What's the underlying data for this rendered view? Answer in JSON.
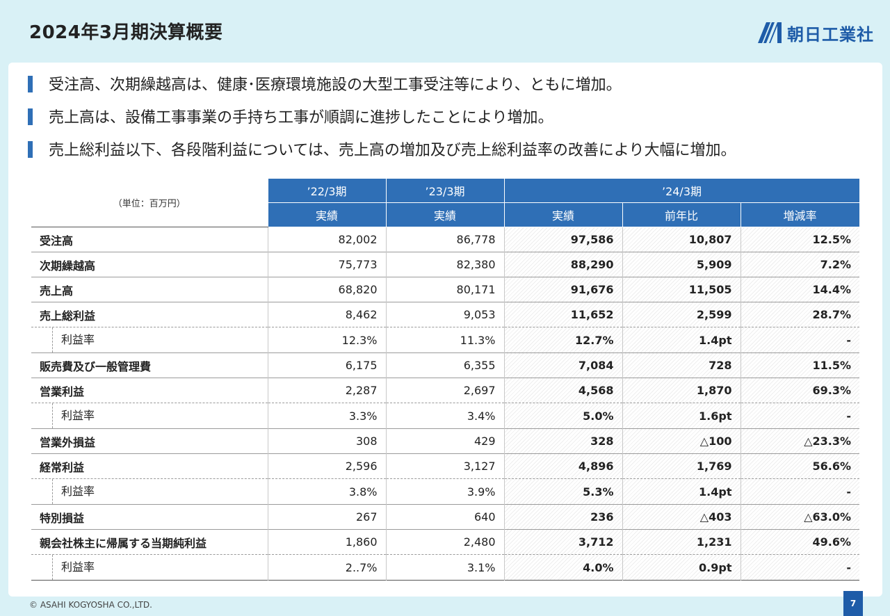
{
  "header": {
    "title": "2024年3月期決算概要",
    "logo_text": "朝日工業社",
    "accent": "#2f6fb6"
  },
  "bullets": [
    "受注高、次期繰越高は、健康･医療環境施設の大型工事受注等により、ともに増加。",
    "売上高は、設備工事事業の手持ち工事が順調に進捗したことにより増加。",
    "売上総利益以下、各段階利益については、売上高の増加及び売上総利益率の改善により大幅に増加。"
  ],
  "table": {
    "unit": "（単位：百万円）",
    "periods": [
      "’22/3期",
      "’23/3期",
      "’24/3期"
    ],
    "subheaders": [
      "実績",
      "実績",
      "実績",
      "前年比",
      "増減率"
    ],
    "rows": [
      {
        "label": "受注高",
        "sub": false,
        "values": [
          "82,002",
          "86,778",
          "97,586",
          "10,807",
          "12.5%"
        ]
      },
      {
        "label": "次期繰越高",
        "sub": false,
        "values": [
          "75,773",
          "82,380",
          "88,290",
          "5,909",
          "7.2%"
        ]
      },
      {
        "label": "売上高",
        "sub": false,
        "values": [
          "68,820",
          "80,171",
          "91,676",
          "11,505",
          "14.4%"
        ]
      },
      {
        "label": "売上総利益",
        "sub": false,
        "values": [
          "8,462",
          "9,053",
          "11,652",
          "2,599",
          "28.7%"
        ]
      },
      {
        "label": "利益率",
        "sub": true,
        "values": [
          "12.3%",
          "11.3%",
          "12.7%",
          "1.4pt",
          "-"
        ]
      },
      {
        "label": "販売費及び一般管理費",
        "sub": false,
        "values": [
          "6,175",
          "6,355",
          "7,084",
          "728",
          "11.5%"
        ]
      },
      {
        "label": "営業利益",
        "sub": false,
        "values": [
          "2,287",
          "2,697",
          "4,568",
          "1,870",
          "69.3%"
        ]
      },
      {
        "label": "利益率",
        "sub": true,
        "values": [
          "3.3%",
          "3.4%",
          "5.0%",
          "1.6pt",
          "-"
        ]
      },
      {
        "label": "営業外損益",
        "sub": false,
        "values": [
          "308",
          "429",
          "328",
          "△100",
          "△23.3%"
        ]
      },
      {
        "label": "経常利益",
        "sub": false,
        "values": [
          "2,596",
          "3,127",
          "4,896",
          "1,769",
          "56.6%"
        ]
      },
      {
        "label": "利益率",
        "sub": true,
        "values": [
          "3.8%",
          "3.9%",
          "5.3%",
          "1.4pt",
          "-"
        ]
      },
      {
        "label": "特別損益",
        "sub": false,
        "values": [
          "267",
          "640",
          "236",
          "△403",
          "△63.0%"
        ]
      },
      {
        "label": "親会社株主に帰属する当期純利益",
        "sub": false,
        "values": [
          "1,860",
          "2,480",
          "3,712",
          "1,231",
          "49.6%"
        ]
      },
      {
        "label": "利益率",
        "sub": true,
        "values": [
          "2..7%",
          "3.1%",
          "4.0%",
          "0.9pt",
          "-"
        ]
      }
    ]
  },
  "footer": {
    "copyright": "© ASAHI KOGYOSHA CO.,LTD.",
    "page": "7"
  }
}
